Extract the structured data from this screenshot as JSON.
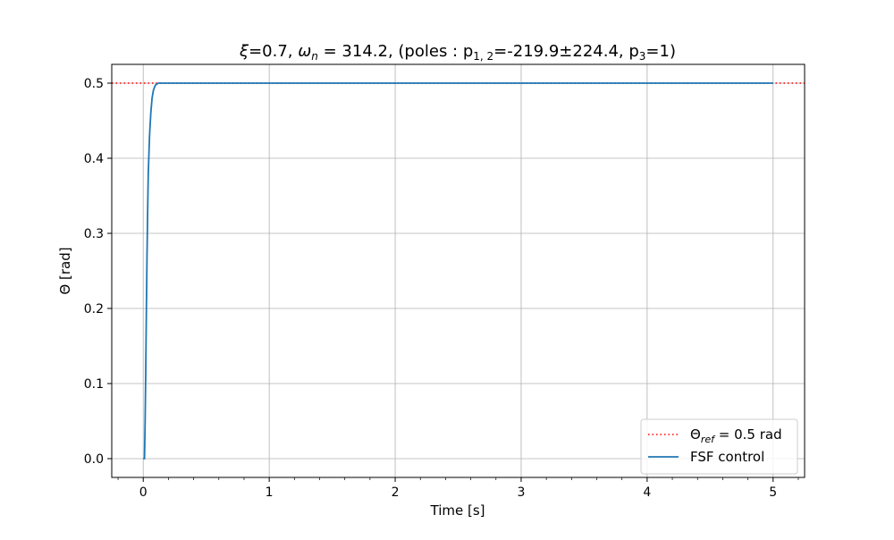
{
  "chart_data": {
    "type": "line",
    "title": {
      "xi_symbol": "ξ",
      "xi_value": "=0.7, ",
      "omega_symbol": "ω",
      "omega_sub": "n",
      "omega_value": " = 314.2",
      "poles_text": ", (poles : p",
      "p12_sub": "1, 2",
      "p12_value": "=-219.9±224.4,  p",
      "p3_sub": "3",
      "p3_value": "=1)"
    },
    "xlabel": "Time [s]",
    "ylabel": "Θ [rad]",
    "xlim": [
      -0.25,
      5.25
    ],
    "ylim": [
      -0.025,
      0.525
    ],
    "x_ticks": [
      0,
      1,
      2,
      3,
      4,
      5
    ],
    "x_tick_labels": [
      "0",
      "1",
      "2",
      "3",
      "4",
      "5"
    ],
    "x_minor_step": 0.2,
    "y_ticks": [
      0.0,
      0.1,
      0.2,
      0.3,
      0.4,
      0.5
    ],
    "y_tick_labels": [
      "0.0",
      "0.1",
      "0.2",
      "0.3",
      "0.4",
      "0.5"
    ],
    "grid": true,
    "legend_position": "bottom-right",
    "series": [
      {
        "name_main": "Θ",
        "name_sub": "ref",
        "name_rest": " = 0.5 rad",
        "style": "dotted",
        "color": "#ff0000",
        "x": [
          -0.25,
          5.25
        ],
        "y": [
          0.5,
          0.5
        ]
      },
      {
        "name": "FSF control",
        "style": "solid",
        "color": "#1f77b4",
        "x": [
          0,
          0.01,
          0.015,
          0.02,
          0.025,
          0.03,
          0.035,
          0.04,
          0.05,
          0.06,
          0.07,
          0.08,
          0.09,
          0.1,
          0.12,
          0.15,
          0.2,
          0.3,
          5
        ],
        "y": [
          0,
          0,
          0.05,
          0.12,
          0.2,
          0.27,
          0.33,
          0.38,
          0.43,
          0.46,
          0.48,
          0.49,
          0.495,
          0.498,
          0.5,
          0.5,
          0.5,
          0.5,
          0.5
        ]
      }
    ]
  }
}
